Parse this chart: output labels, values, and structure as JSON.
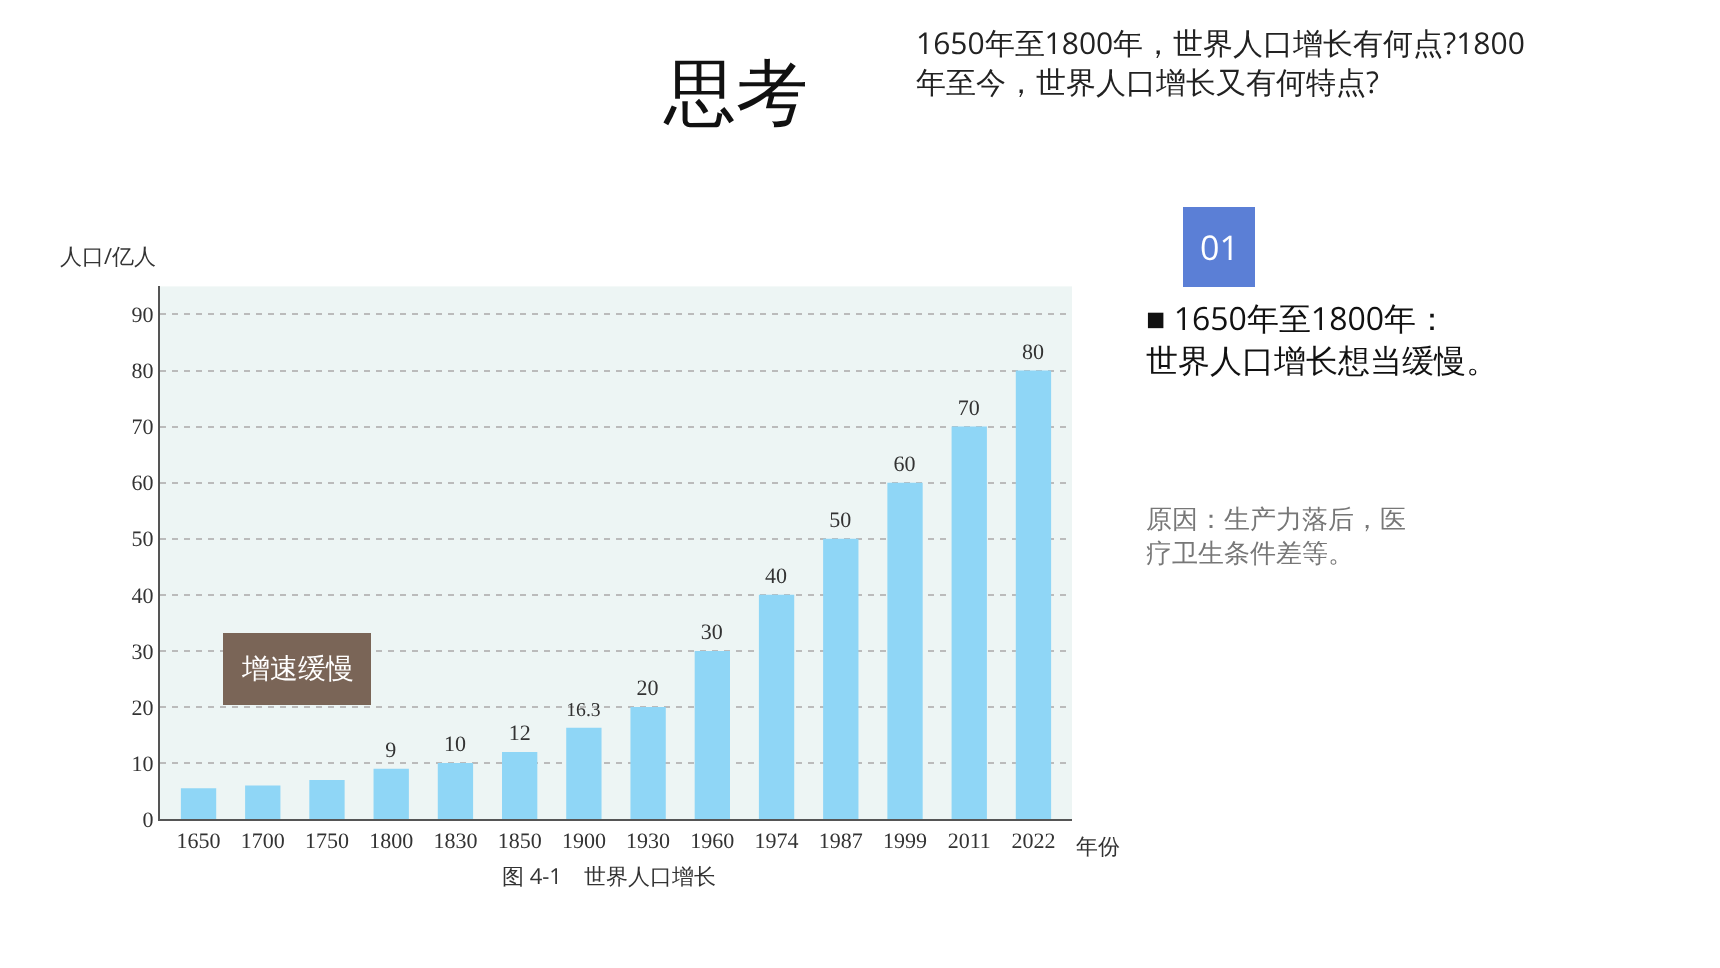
{
  "chart_data": {
    "type": "bar",
    "title": "思考",
    "subtitle": "1650年至1800年，世界人口增长有何点?1800年至今，世界人口增长又有何特点?",
    "xlabel": "年份",
    "ylabel": "人口/亿人",
    "categories": [
      "1650",
      "1700",
      "1750",
      "1800",
      "1830",
      "1850",
      "1900",
      "1930",
      "1960",
      "1974",
      "1987",
      "1999",
      "2011",
      "2022"
    ],
    "values": [
      5.5,
      6,
      7,
      9,
      10,
      12,
      16.3,
      20,
      30,
      40,
      50,
      60,
      70,
      80
    ],
    "value_labels": [
      null,
      null,
      null,
      "9",
      "10",
      "12",
      "16.3",
      "20",
      "30",
      "40",
      "50",
      "60",
      "70",
      "80"
    ],
    "color": "#8fd6f6",
    "ylim": [
      0,
      95
    ],
    "yticks": [
      0,
      10,
      20,
      30,
      40,
      50,
      60,
      70,
      80,
      90
    ],
    "grid": "y",
    "annotations": [
      "增速缓慢",
      "图 4-1　世界人口增长",
      "01",
      "■ 1650年至1800年：世界人口增长想当缓慢。",
      "原因：生产力落后，医疗卫生条件差等。"
    ]
  }
}
